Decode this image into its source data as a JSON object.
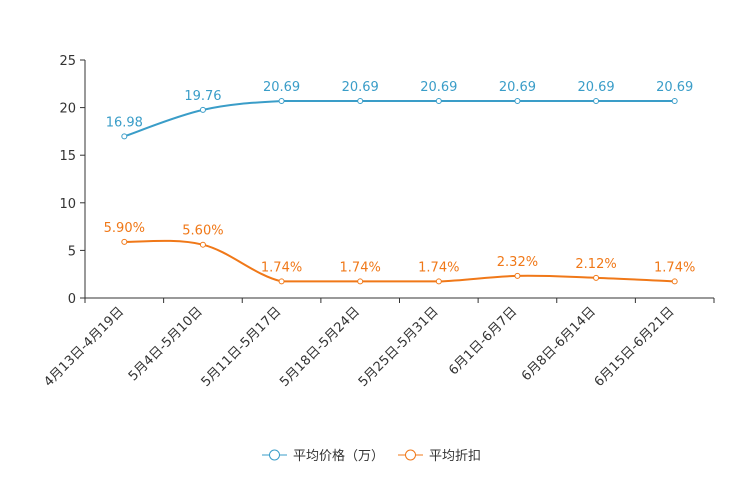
{
  "chart_data": {
    "type": "line",
    "categories": [
      "4月13日-4月19日",
      "5月4日-5月10日",
      "5月11日-5月17日",
      "5月18日-5月24日",
      "5月25日-5月31日",
      "6月1日-6月7日",
      "6月8日-6月14日",
      "6月15日-6月21日"
    ],
    "ylim": [
      0,
      25
    ],
    "yticks": [
      0,
      5,
      10,
      15,
      20,
      25
    ],
    "series": [
      {
        "name": "平均价格（万）",
        "color": "#3a9dc8",
        "values": [
          16.98,
          19.76,
          20.69,
          20.69,
          20.69,
          20.69,
          20.69,
          20.69
        ],
        "labels": [
          "16.98",
          "19.76",
          "20.69",
          "20.69",
          "20.69",
          "20.69",
          "20.69",
          "20.69"
        ]
      },
      {
        "name": "平均折扣",
        "color": "#f07818",
        "values": [
          5.9,
          5.6,
          1.74,
          1.74,
          1.74,
          2.32,
          2.12,
          1.74
        ],
        "labels": [
          "5.90%",
          "5.60%",
          "1.74%",
          "1.74%",
          "1.74%",
          "2.32%",
          "2.12%",
          "1.74%"
        ]
      }
    ],
    "legend": "bottom-center",
    "title": "",
    "xlabel": "",
    "ylabel": ""
  }
}
